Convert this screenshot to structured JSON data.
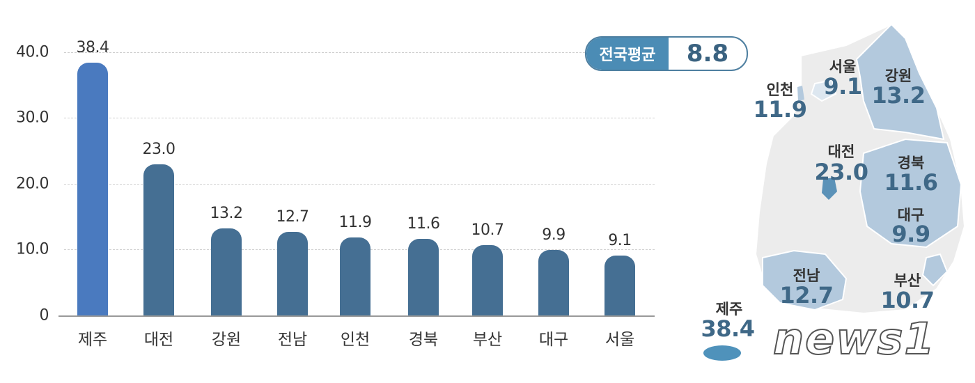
{
  "chart_data": {
    "type": "bar",
    "title": "",
    "xlabel": "",
    "ylabel": "",
    "ylim": [
      0,
      40
    ],
    "yticks": [
      "0",
      "10.0",
      "20.0",
      "30.0",
      "40.0"
    ],
    "grid": true,
    "categories": [
      "제주",
      "대전",
      "강원",
      "전남",
      "인천",
      "경북",
      "부산",
      "대구",
      "서울"
    ],
    "values": [
      38.4,
      23.0,
      13.2,
      12.7,
      11.9,
      11.6,
      10.7,
      9.9,
      9.1
    ],
    "value_labels": [
      "38.4",
      "23.0",
      "13.2",
      "12.7",
      "11.9",
      "11.6",
      "10.7",
      "9.9",
      "9.1"
    ],
    "highlight_index": 0,
    "colors": {
      "highlight": "#4a7abf",
      "bar": "#456f93"
    }
  },
  "national_average": {
    "label": "전국평균",
    "value": "8.8"
  },
  "map": {
    "regions": [
      {
        "name": "서울",
        "value": "9.1"
      },
      {
        "name": "인천",
        "value": "11.9"
      },
      {
        "name": "강원",
        "value": "13.2"
      },
      {
        "name": "대전",
        "value": "23.0"
      },
      {
        "name": "경북",
        "value": "11.6"
      },
      {
        "name": "대구",
        "value": "9.9"
      },
      {
        "name": "전남",
        "value": "12.7"
      },
      {
        "name": "부산",
        "value": "10.7"
      },
      {
        "name": "제주",
        "value": "38.4"
      }
    ]
  },
  "watermark": "news1"
}
